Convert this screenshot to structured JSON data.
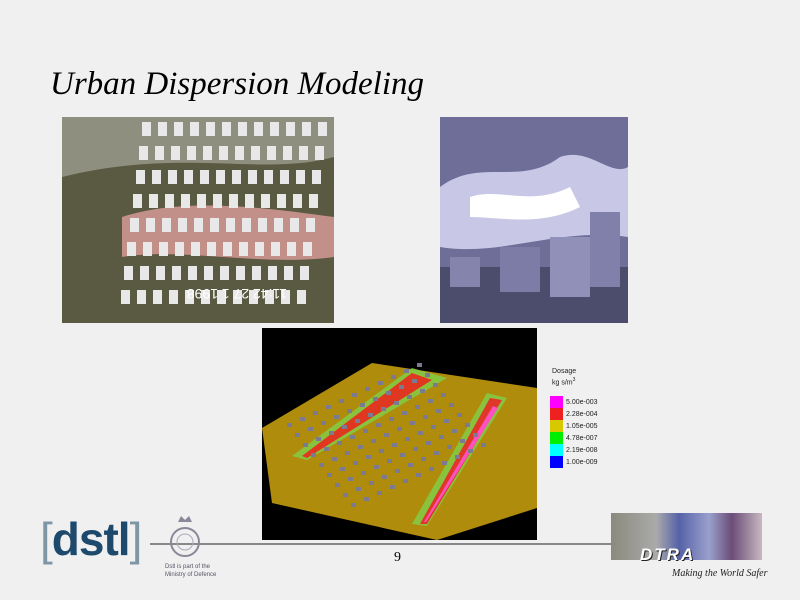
{
  "slide": {
    "title": "Urban Dispersion Modeling",
    "page_number": "9"
  },
  "legend": {
    "title": "Dosage",
    "unit": "kg s/m",
    "unit_exp": "3",
    "items": [
      {
        "label": "5.00e-003",
        "color": "#ff00ff"
      },
      {
        "label": "2.28e-004",
        "color": "#ee2020"
      },
      {
        "label": "1.05e-005",
        "color": "#d8c800"
      },
      {
        "label": "4.78e-007",
        "color": "#00ee00"
      },
      {
        "label": "2.19e-008",
        "color": "#00ffff"
      },
      {
        "label": "1.00e-009",
        "color": "#0000ff"
      }
    ]
  },
  "footer": {
    "dstl_logo": "dstl",
    "mod_text_1": "Dstl is part of the",
    "mod_text_2": "Ministry of Defence",
    "dtra_logo": "DTRA",
    "tagline": "Making the World Safer"
  },
  "photo_left": {
    "overlay_text": "11:42 27 1 1998"
  }
}
